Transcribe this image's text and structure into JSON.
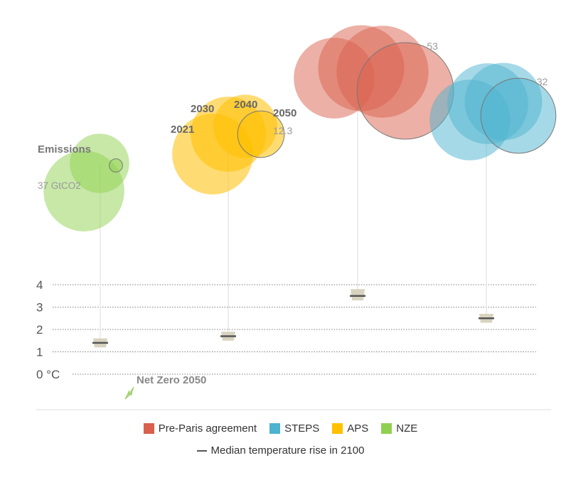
{
  "chart_data": {
    "type": "bubble",
    "y_axis": {
      "unit": "°C",
      "ticks": [
        "0 °C",
        "1",
        "2",
        "3",
        "4"
      ],
      "ylim": [
        0,
        4
      ]
    },
    "annotations": {
      "emissions": "Emissions",
      "emissions_value": "37 GtCO2",
      "net_zero": "Net Zero 2050"
    },
    "series": [
      {
        "name": "NZE",
        "color": "#8fd14f",
        "emissions": [
          {
            "year": "2021",
            "value": 37
          },
          {
            "year": "2030",
            "value": 20
          },
          {
            "year": "2050",
            "value": 1
          }
        ],
        "median_temperature_2100": 1.4,
        "temperature_range": [
          1.2,
          1.6
        ]
      },
      {
        "name": "APS",
        "color": "#ffc000",
        "emissions": [
          {
            "year": "2021",
            "value": 37
          },
          {
            "year": "2030",
            "value": 32
          },
          {
            "year": "2040",
            "value": 23
          },
          {
            "year": "2050",
            "value": 12.3
          }
        ],
        "median_temperature_2100": 1.7,
        "temperature_range": [
          1.5,
          1.9
        ],
        "year_labels": [
          "2021",
          "2030",
          "2040",
          "2050"
        ],
        "end_label": "12.3"
      },
      {
        "name": "Pre-Paris agreement",
        "color": "#d9614d",
        "emissions": [
          {
            "year": "2021",
            "value": 37
          },
          {
            "year": "2030",
            "value": 42
          },
          {
            "year": "2040",
            "value": 48
          },
          {
            "year": "2050",
            "value": 53
          }
        ],
        "median_temperature_2100": 3.5,
        "temperature_range": [
          3.3,
          3.8
        ],
        "end_label": "53"
      },
      {
        "name": "STEPS",
        "color": "#4db3cf",
        "emissions": [
          {
            "year": "2021",
            "value": 37
          },
          {
            "year": "2030",
            "value": 37
          },
          {
            "year": "2040",
            "value": 34
          },
          {
            "year": "2050",
            "value": 32
          }
        ],
        "median_temperature_2100": 2.5,
        "temperature_range": [
          2.3,
          2.7
        ],
        "end_label": "32"
      }
    ],
    "legend": {
      "placement": "bottom",
      "items": [
        {
          "label": "Pre-Paris agreement",
          "color": "#d9614d"
        },
        {
          "label": "STEPS",
          "color": "#4db3cf"
        },
        {
          "label": "APS",
          "color": "#ffc000"
        },
        {
          "label": "NZE",
          "color": "#8fd14f"
        }
      ],
      "median_label": "Median temperature rise in 2100"
    }
  }
}
